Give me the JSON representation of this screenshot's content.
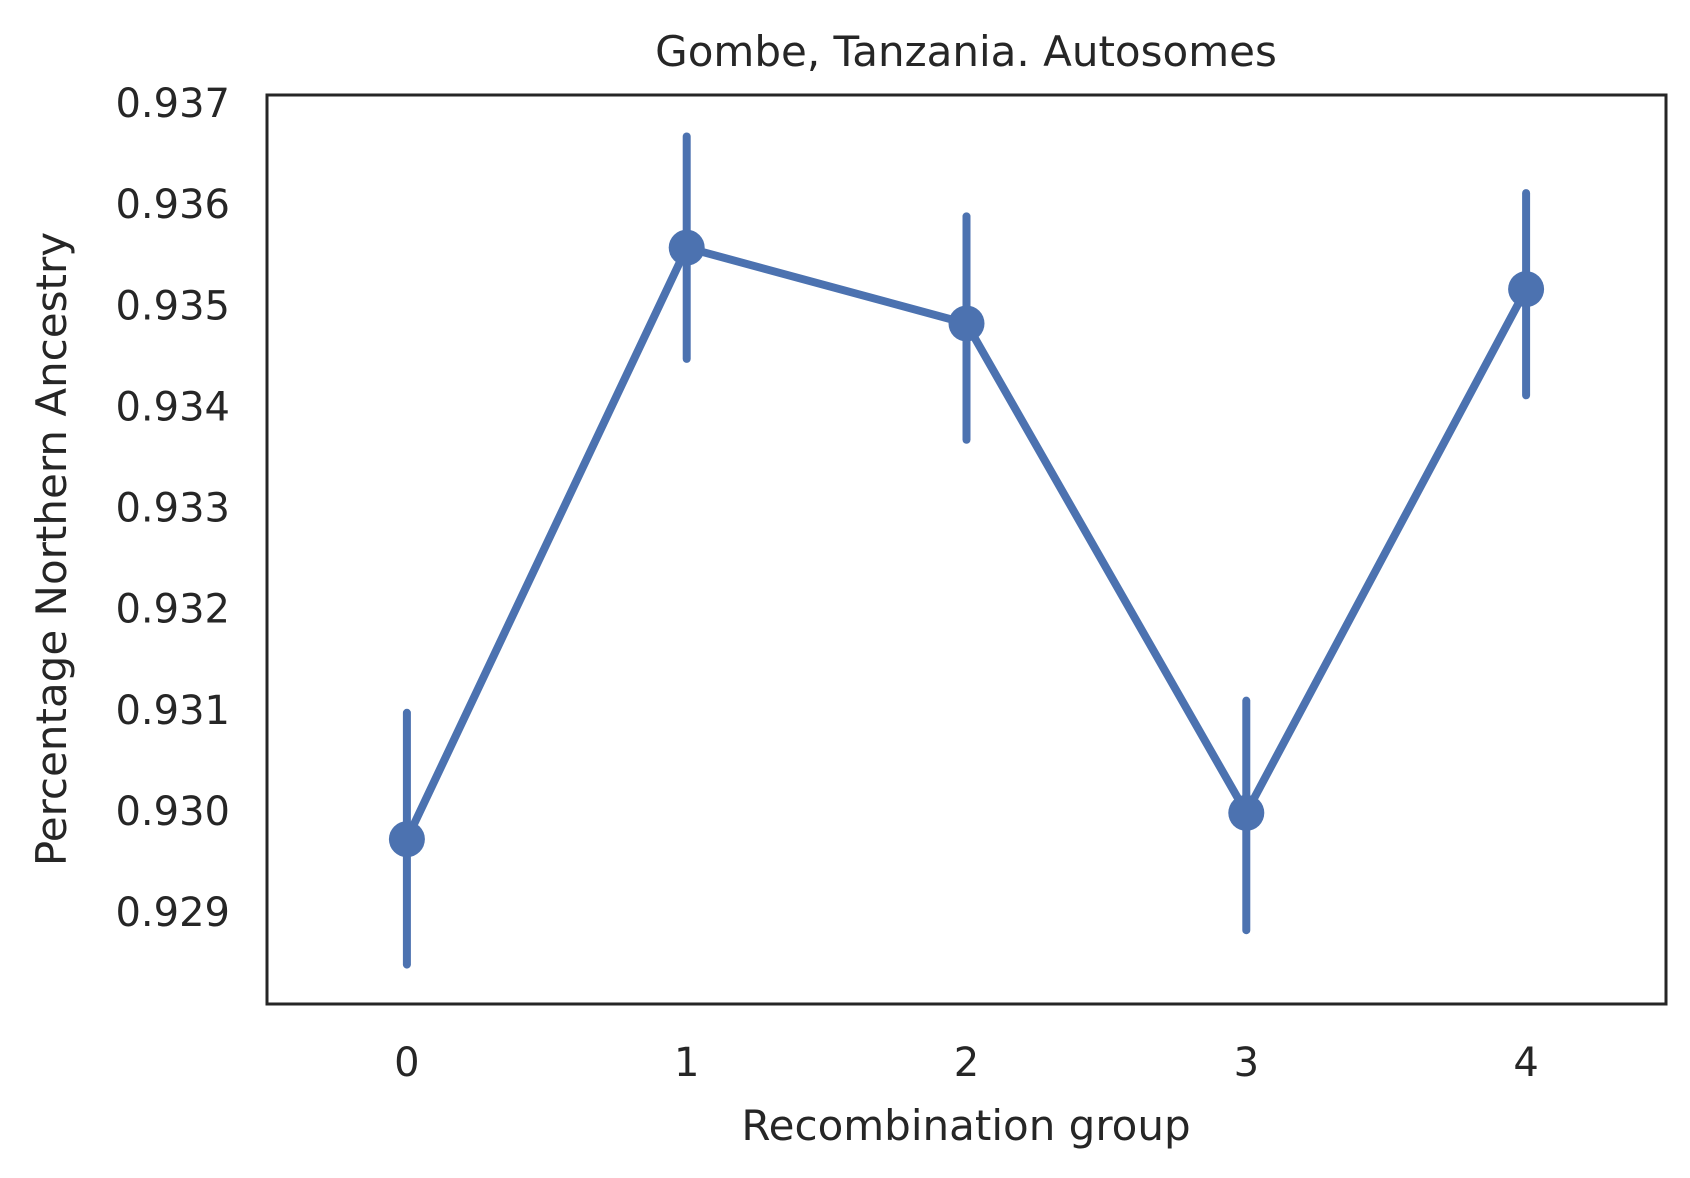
{
  "chart_data": {
    "type": "line",
    "title": "Gombe, Tanzania. Autosomes",
    "xlabel": "Recombination group",
    "ylabel": "Percentage Northern Ancestry",
    "categories": [
      "0",
      "1",
      "2",
      "3",
      "4"
    ],
    "series": [
      {
        "values": [
          0.92972,
          0.93557,
          0.93482,
          0.92998,
          0.93516
        ],
        "ci_low": [
          0.92848,
          0.93447,
          0.93367,
          0.92882,
          0.93411
        ],
        "ci_high": [
          0.93097,
          0.93667,
          0.93588,
          0.93109,
          0.93611
        ]
      }
    ],
    "yticks": [
      "0.929",
      "0.930",
      "0.931",
      "0.932",
      "0.933",
      "0.934",
      "0.935",
      "0.936",
      "0.937"
    ],
    "ylim": [
      0.92809,
      0.93708
    ],
    "xlim": [
      -0.5,
      4.5
    ],
    "grid": false,
    "legend": "none",
    "colors": {
      "series": "#4c72b0",
      "axes": "#262626",
      "text": "#262626"
    }
  }
}
